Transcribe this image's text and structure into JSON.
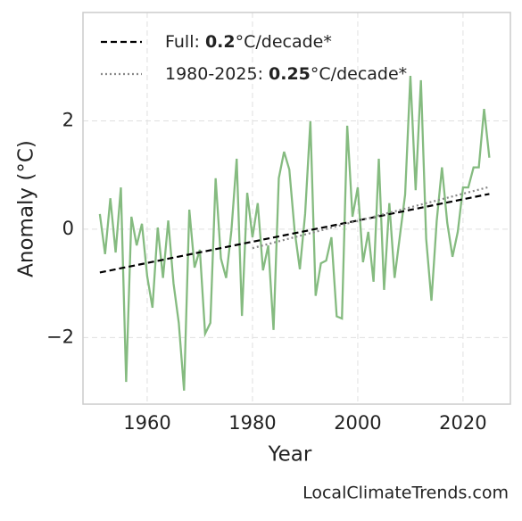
{
  "chart_data": {
    "type": "line",
    "x_label": "Year",
    "y_label": "Anomaly (°C)",
    "source": "LocalClimateTrends.com",
    "xlim": [
      1947.8,
      2029
    ],
    "xticks": [
      1960,
      1980,
      2000,
      2020
    ],
    "ylim": [
      -3.23,
      4.0
    ],
    "yticks": [
      {
        "value": -2,
        "label": "−2"
      },
      0,
      2
    ],
    "grid": true,
    "legend": "upper left",
    "series": [
      {
        "color": "#85bb80",
        "x": [
          1951,
          1952,
          1953,
          1954,
          1955,
          1956,
          1957,
          1958,
          1959,
          1960,
          1961,
          1962,
          1963,
          1964,
          1965,
          1966,
          1967,
          1968,
          1969,
          1970,
          1971,
          1972,
          1973,
          1974,
          1975,
          1976,
          1977,
          1978,
          1979,
          1980,
          1981,
          1982,
          1983,
          1984,
          1985,
          1986,
          1987,
          1988,
          1989,
          1990,
          1991,
          1992,
          1993,
          1994,
          1995,
          1996,
          1997,
          1998,
          1999,
          2000,
          2001,
          2002,
          2003,
          2004,
          2005,
          2006,
          2007,
          2008,
          2009,
          2010,
          2011,
          2012,
          2013,
          2014,
          2015,
          2016,
          2017,
          2018,
          2019,
          2020,
          2021,
          2022,
          2023,
          2024,
          2025
        ],
        "values": [
          0.28,
          -0.46,
          0.57,
          -0.43,
          0.77,
          -2.82,
          0.23,
          -0.3,
          0.1,
          -0.87,
          -1.45,
          0.03,
          -0.9,
          0.16,
          -1.0,
          -1.73,
          -2.98,
          0.36,
          -0.71,
          -0.38,
          -1.93,
          -1.73,
          0.94,
          -0.54,
          -0.9,
          -0.02,
          1.3,
          -1.6,
          0.67,
          -0.15,
          0.48,
          -0.76,
          -0.3,
          -1.86,
          0.94,
          1.43,
          1.1,
          -0.02,
          -0.74,
          0.28,
          1.99,
          -1.23,
          -0.63,
          -0.58,
          -0.15,
          -1.61,
          -1.65,
          1.91,
          0.23,
          0.77,
          -0.61,
          -0.05,
          -0.97,
          1.3,
          -1.12,
          0.48,
          -0.9,
          -0.13,
          0.64,
          2.83,
          0.72,
          2.75,
          -0.18,
          -1.32,
          0.15,
          1.14,
          0.12,
          -0.51,
          -0.05,
          0.77,
          0.77,
          1.14,
          1.14,
          2.22,
          1.32
        ]
      },
      {
        "name": "Full: ",
        "slope": 0.2,
        "unit": "°C/decade*",
        "color": "#000000",
        "style": "dashed",
        "x": [
          1951,
          2025
        ],
        "values": [
          -0.8,
          0.65
        ]
      },
      {
        "name": "1980-2025: ",
        "slope": 0.25,
        "unit": "°C/decade*",
        "color": "#888888",
        "style": "dotted",
        "x": [
          1980,
          2025
        ],
        "values": [
          -0.35,
          0.78
        ]
      }
    ]
  }
}
